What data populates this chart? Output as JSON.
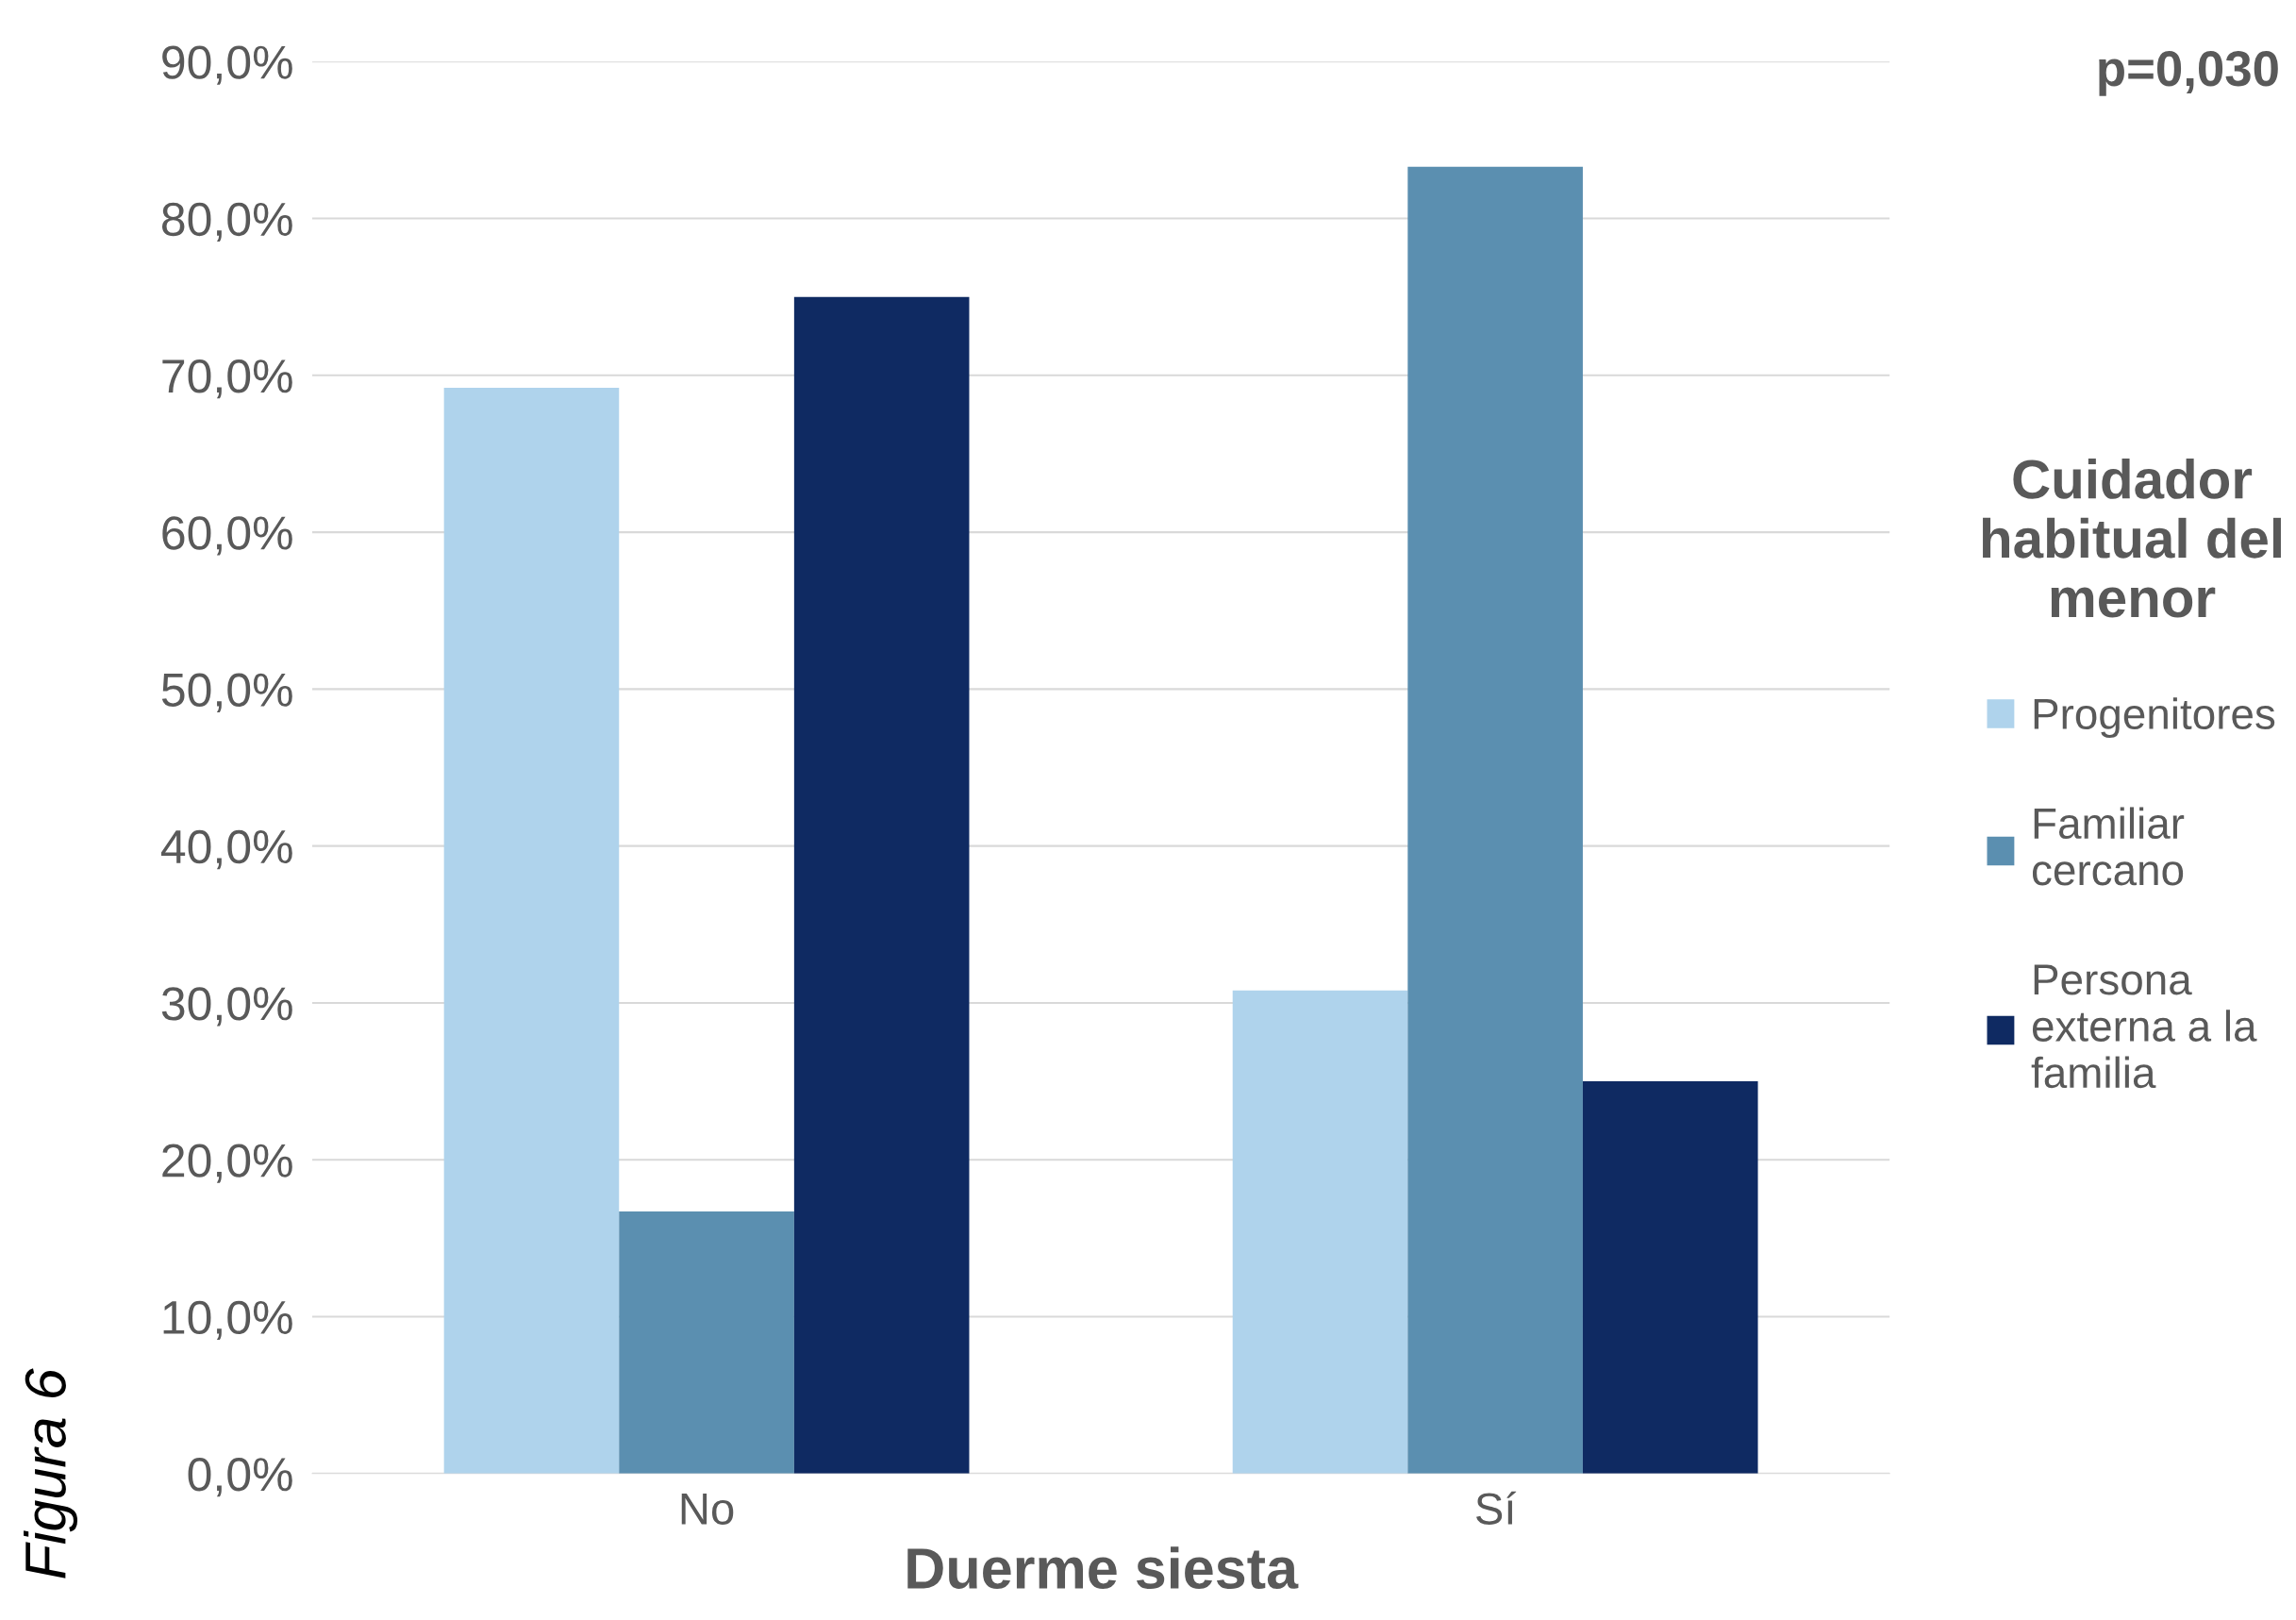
{
  "chart_data": {
    "type": "bar",
    "xlabel": "Duerme siesta",
    "legend_title": "Cuidador habitual del menor",
    "categories": [
      "No",
      "Sí"
    ],
    "series": [
      {
        "name": "Progenitores",
        "color": "#afd3ec",
        "values": [
          69.2,
          30.8
        ]
      },
      {
        "name": "Familiar cercano",
        "color": "#5b8fb0",
        "values": [
          16.7,
          83.3
        ]
      },
      {
        "name": "Persona externa a la familia",
        "color": "#0f2a62",
        "values": [
          75.0,
          25.0
        ]
      }
    ],
    "ylim": [
      0,
      90
    ],
    "yticks": [
      {
        "value": 0,
        "label": "0,0%"
      },
      {
        "value": 10,
        "label": "10,0%"
      },
      {
        "value": 20,
        "label": "20,0%"
      },
      {
        "value": 30,
        "label": "30,0%"
      },
      {
        "value": 40,
        "label": "40,0%"
      },
      {
        "value": 50,
        "label": "50,0%"
      },
      {
        "value": 60,
        "label": "60,0%"
      },
      {
        "value": 70,
        "label": "70,0%"
      },
      {
        "value": 80,
        "label": "80,0%"
      },
      {
        "value": 90,
        "label": "90,0%"
      }
    ],
    "grid": "y",
    "legend": "right",
    "annotations": [
      "p=0,030",
      "Figura 6"
    ]
  }
}
